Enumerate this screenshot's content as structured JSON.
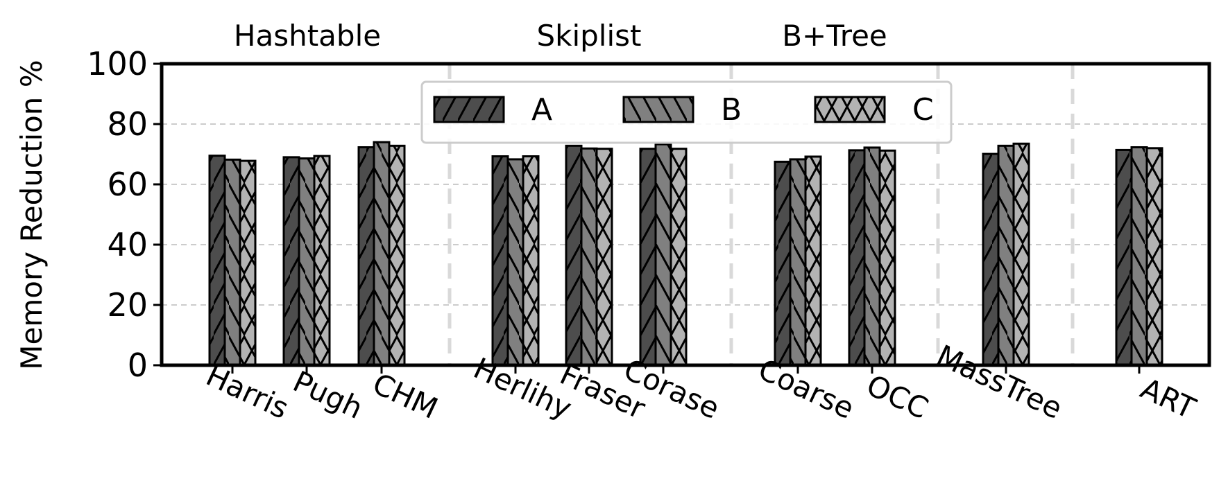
{
  "chart_data": {
    "type": "bar",
    "title": "",
    "xlabel": "",
    "ylabel": "Memory Reduction %",
    "ylim": [
      0,
      100
    ],
    "yticks": [
      "0",
      "20",
      "40",
      "60",
      "80",
      "100"
    ],
    "grid": true,
    "legend_position": "top-center",
    "categories": [
      "Harris",
      "Pugh",
      "CHM",
      "Herlihy",
      "Fraser",
      "Corase",
      "Coarse",
      "OCC",
      "MassTree",
      "ART"
    ],
    "groups": [
      {
        "label": "Hashtable",
        "members": [
          "Harris",
          "Pugh",
          "CHM"
        ]
      },
      {
        "label": "Skiplist",
        "members": [
          "Herlihy",
          "Fraser",
          "Corase"
        ]
      },
      {
        "label": "B+Tree",
        "members": [
          "Coarse",
          "OCC"
        ]
      }
    ],
    "series": [
      {
        "name": "A",
        "color": "#4d4d4d",
        "hatch": "forward-slash",
        "values": [
          69.5,
          69,
          72.3,
          69.3,
          72.8,
          71.8,
          67.5,
          71.3,
          70.1,
          71.4
        ]
      },
      {
        "name": "B",
        "color": "#808080",
        "hatch": "back-slash",
        "values": [
          68.2,
          68.6,
          74,
          68.3,
          71.9,
          73.3,
          68.3,
          72.2,
          72.8,
          72.3
        ]
      },
      {
        "name": "C",
        "color": "#b3b3b3",
        "hatch": "cross",
        "values": [
          67.8,
          69.4,
          72.8,
          69.3,
          71.8,
          71.8,
          69.2,
          71.2,
          73.5,
          72
        ]
      }
    ]
  }
}
